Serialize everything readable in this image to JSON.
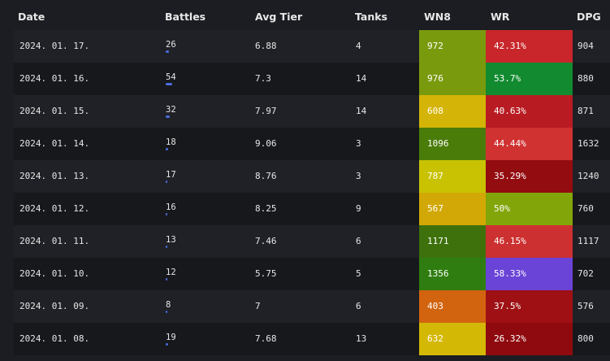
{
  "header": {
    "date": "Date",
    "battles": "Battles",
    "avg_tier": "Avg Tier",
    "tanks": "Tanks",
    "wn8": "WN8",
    "wr": "WR",
    "dpg": "DPG"
  },
  "colors": {
    "background": "#1b1d22",
    "row_odd": "#1f2126",
    "row_even": "#17181c",
    "battles_bar": "#4b6be0"
  },
  "rows": [
    {
      "date": "2024. 01. 17.",
      "battles": "26",
      "battles_bar_fraction": 0.48,
      "avg_tier": "6.88",
      "tanks": "4",
      "wn8": "972",
      "wn8_color": "#7a9a0e",
      "wr": "42.31%",
      "wr_color": "#c8262a",
      "dpg": "904"
    },
    {
      "date": "2024. 01. 16.",
      "battles": "54",
      "battles_bar_fraction": 1.0,
      "avg_tier": "7.3",
      "tanks": "14",
      "wn8": "976",
      "wn8_color": "#7a9a0e",
      "wr": "53.7%",
      "wr_color": "#128a30",
      "dpg": "880"
    },
    {
      "date": "2024. 01. 15.",
      "battles": "32",
      "battles_bar_fraction": 0.59,
      "avg_tier": "7.97",
      "tanks": "14",
      "wn8": "608",
      "wn8_color": "#d4b406",
      "wr": "40.63%",
      "wr_color": "#b81c22",
      "dpg": "871"
    },
    {
      "date": "2024. 01. 14.",
      "battles": "18",
      "battles_bar_fraction": 0.33,
      "avg_tier": "9.06",
      "tanks": "3",
      "wn8": "1096",
      "wn8_color": "#4a7c0a",
      "wr": "44.44%",
      "wr_color": "#d03232",
      "dpg": "1632"
    },
    {
      "date": "2024. 01. 13.",
      "battles": "17",
      "battles_bar_fraction": 0.31,
      "avg_tier": "8.76",
      "tanks": "3",
      "wn8": "787",
      "wn8_color": "#c8c203",
      "wr": "35.29%",
      "wr_color": "#930c10",
      "dpg": "1240"
    },
    {
      "date": "2024. 01. 12.",
      "battles": "16",
      "battles_bar_fraction": 0.3,
      "avg_tier": "8.25",
      "tanks": "9",
      "wn8": "567",
      "wn8_color": "#d2a806",
      "wr": "50%",
      "wr_color": "#82a50a",
      "dpg": "760"
    },
    {
      "date": "2024. 01. 11.",
      "battles": "13",
      "battles_bar_fraction": 0.24,
      "avg_tier": "7.46",
      "tanks": "6",
      "wn8": "1171",
      "wn8_color": "#3e710c",
      "wr": "46.15%",
      "wr_color": "#cc3030",
      "dpg": "1117"
    },
    {
      "date": "2024. 01. 10.",
      "battles": "12",
      "battles_bar_fraction": 0.22,
      "avg_tier": "5.75",
      "tanks": "5",
      "wn8": "1356",
      "wn8_color": "#2f7d10",
      "wr": "58.33%",
      "wr_color": "#6a44d6",
      "dpg": "702"
    },
    {
      "date": "2024. 01. 09.",
      "battles": "8",
      "battles_bar_fraction": 0.15,
      "avg_tier": "7",
      "tanks": "6",
      "wn8": "403",
      "wn8_color": "#d26410",
      "wr": "37.5%",
      "wr_color": "#9e1014",
      "dpg": "576"
    },
    {
      "date": "2024. 01. 08.",
      "battles": "19",
      "battles_bar_fraction": 0.35,
      "avg_tier": "7.68",
      "tanks": "13",
      "wn8": "632",
      "wn8_color": "#d4b806",
      "wr": "26.32%",
      "wr_color": "#8e0a0e",
      "dpg": "800"
    }
  ]
}
